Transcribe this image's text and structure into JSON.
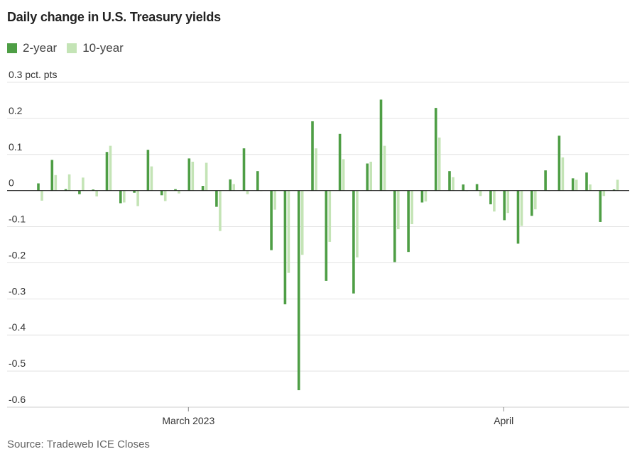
{
  "chart_data": {
    "type": "bar",
    "title": "Daily change in U.S. Treasury yields",
    "source": "Source: Tradeweb ICE Closes",
    "y_unit_label": "0.3 pct. pts",
    "ylim": [
      -0.6,
      0.3
    ],
    "y_ticks": [
      {
        "value": 0.3,
        "label": "0.3 pct. pts"
      },
      {
        "value": 0.2,
        "label": "0.2"
      },
      {
        "value": 0.1,
        "label": "0.1"
      },
      {
        "value": 0,
        "label": "0"
      },
      {
        "value": -0.1,
        "label": "-0.1"
      },
      {
        "value": -0.2,
        "label": "-0.2"
      },
      {
        "value": -0.3,
        "label": "-0.3"
      },
      {
        "value": -0.4,
        "label": "-0.4"
      },
      {
        "value": -0.5,
        "label": "-0.5"
      },
      {
        "value": -0.6,
        "label": "-0.6"
      }
    ],
    "x_ticks": [
      {
        "index": 11,
        "label": "March 2023"
      },
      {
        "index": 34,
        "label": "April"
      }
    ],
    "colors": {
      "two_year": "#4e9e45",
      "ten_year": "#c4e4b6"
    },
    "series": [
      {
        "name": "2-year",
        "values": [
          0.02,
          0.085,
          0.004,
          -0.01,
          0.003,
          0.107,
          -0.035,
          -0.006,
          0.113,
          -0.013,
          0.004,
          0.089,
          0.013,
          -0.045,
          0.031,
          0.117,
          0.054,
          -0.165,
          -0.315,
          -0.553,
          0.192,
          -0.25,
          0.157,
          -0.285,
          0.075,
          0.252,
          -0.198,
          -0.17,
          -0.033,
          0.229,
          0.054,
          0.017,
          0.018,
          -0.038,
          -0.082,
          -0.147,
          -0.07,
          0.056,
          0.152,
          0.034,
          0.05,
          -0.087,
          0.003
        ]
      },
      {
        "name": "10-year",
        "values": [
          -0.028,
          0.043,
          0.045,
          0.036,
          -0.016,
          0.124,
          -0.033,
          -0.043,
          0.067,
          -0.029,
          -0.008,
          0.08,
          0.077,
          -0.112,
          0.018,
          -0.01,
          0.0,
          -0.053,
          -0.228,
          -0.178,
          0.117,
          -0.142,
          0.087,
          -0.185,
          0.08,
          0.124,
          -0.107,
          -0.093,
          -0.03,
          0.147,
          0.037,
          0.0,
          -0.015,
          -0.058,
          -0.062,
          -0.098,
          -0.052,
          0.0,
          0.092,
          0.03,
          0.017,
          -0.015,
          0.03
        ]
      }
    ]
  }
}
